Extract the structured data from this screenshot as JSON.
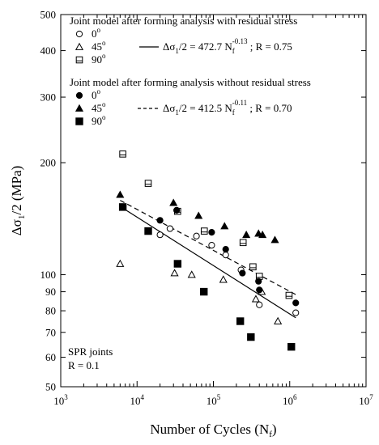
{
  "chart_data": {
    "type": "scatter",
    "xlabel_main": "Number of Cycles (N",
    "xlabel_sub": "f",
    "xlabel_close": ")",
    "ylabel_main": "Δσ",
    "ylabel_sub": "1",
    "ylabel_rest": "/2 (MPa)",
    "x_scale": "log",
    "y_scale": "log",
    "xlim": [
      1000,
      10000000
    ],
    "ylim": [
      50,
      500
    ],
    "x_ticks": [
      {
        "value": 1000,
        "base": "10",
        "exp": "3"
      },
      {
        "value": 10000,
        "base": "10",
        "exp": "4"
      },
      {
        "value": 100000,
        "base": "10",
        "exp": "5"
      },
      {
        "value": 1000000,
        "base": "10",
        "exp": "6"
      },
      {
        "value": 10000000,
        "base": "10",
        "exp": "7"
      }
    ],
    "y_ticks": [
      {
        "value": 50,
        "label": "50"
      },
      {
        "value": 60,
        "label": "60"
      },
      {
        "value": 70,
        "label": "70"
      },
      {
        "value": 80,
        "label": "80"
      },
      {
        "value": 90,
        "label": "90"
      },
      {
        "value": 100,
        "label": "100"
      },
      {
        "value": 200,
        "label": "200"
      },
      {
        "value": 300,
        "label": "300"
      },
      {
        "value": 400,
        "label": "400"
      },
      {
        "value": 500,
        "label": "500"
      }
    ],
    "groups": [
      {
        "title": "Joint model after forming analysis with residual stress",
        "fit": {
          "style": "solid",
          "A": 472.7,
          "b": -0.13,
          "x_range": [
            6000,
            1200000
          ],
          "eq_main": "Δσ",
          "eq_sub": "1",
          "eq_mid": "/2 = 472.7 N",
          "eq_fsub": "f",
          "eq_exp": "-0.13",
          "eq_tail": "; R = 0.75"
        },
        "series": [
          {
            "name": "0",
            "degree": "o",
            "marker": "circle-open",
            "x": [
              20000,
              27000,
              60000,
              95000,
              145000,
              230000,
              400000,
              1200000
            ],
            "y": [
              128,
              133,
              127,
              120,
              113,
              103,
              83,
              79
            ]
          },
          {
            "name": "45",
            "degree": "o",
            "marker": "triangle-open",
            "x": [
              6000,
              31000,
              52000,
              135000,
              360000,
              430000,
              700000
            ],
            "y": [
              107,
              101,
              100,
              97,
              86,
              90,
              75
            ]
          },
          {
            "name": "90",
            "degree": "o",
            "marker": "square-open",
            "x": [
              6500,
              14000,
              34000,
              76000,
              245000,
              330000,
              400000,
              980000
            ],
            "y": [
              211,
              176,
              148,
              131,
              122,
              105,
              99,
              88
            ]
          }
        ]
      },
      {
        "title": "Joint model after forming analysis without residual stress",
        "fit": {
          "style": "dashed",
          "A": 412.5,
          "b": -0.11,
          "x_range": [
            6000,
            1200000
          ],
          "eq_main": "Δσ",
          "eq_sub": "1",
          "eq_mid": "/2 = 412.5 N",
          "eq_fsub": "f",
          "eq_exp": "-0.11",
          "eq_tail": "; R = 0.70"
        },
        "series": [
          {
            "name": "0",
            "degree": "o",
            "marker": "circle-filled",
            "x": [
              20000,
              33000,
              95000,
              145000,
              240000,
              390000,
              400000,
              1200000
            ],
            "y": [
              140,
              149,
              130,
              117,
              101,
              96,
              91,
              84
            ]
          },
          {
            "name": "45",
            "degree": "o",
            "marker": "triangle-filled",
            "x": [
              6000,
              30000,
              64000,
              140000,
              270000,
              390000,
              440000,
              640000
            ],
            "y": [
              164,
              156,
              144,
              135,
              128,
              129,
              128,
              124
            ]
          },
          {
            "name": "90",
            "degree": "o",
            "marker": "square-filled",
            "x": [
              6500,
              14000,
              34000,
              75000,
              225000,
              310000,
              1050000
            ],
            "y": [
              152,
              131,
              107,
              90,
              75,
              68,
              64
            ]
          }
        ]
      }
    ],
    "annotation": [
      "SPR joints",
      "R = 0.1"
    ]
  }
}
